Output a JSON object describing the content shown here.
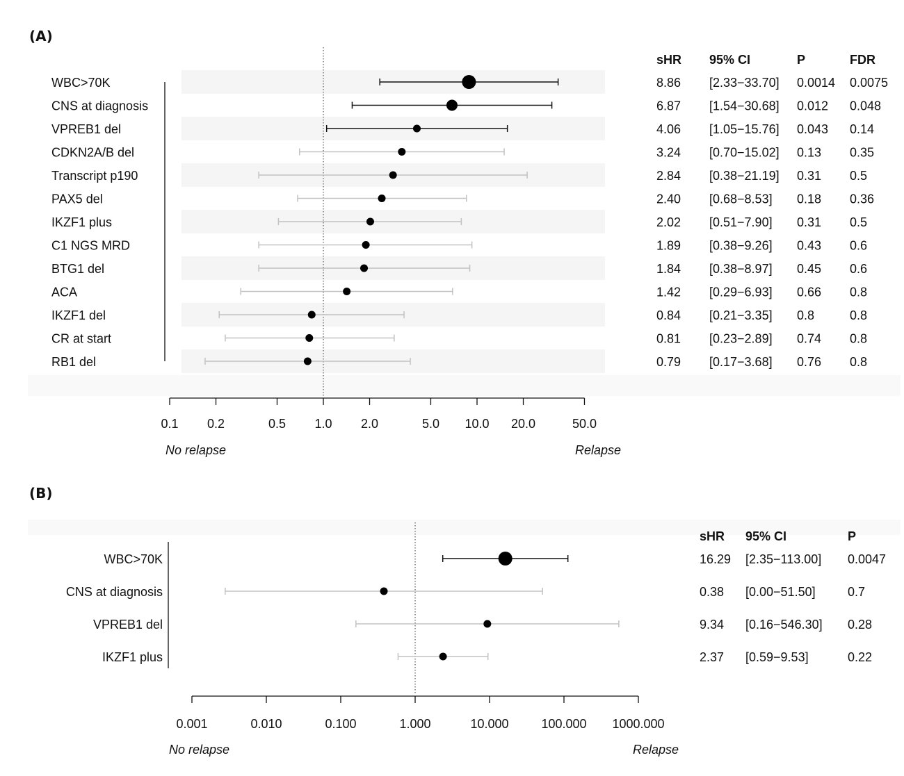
{
  "panels": {
    "a": {
      "label": "(A)"
    },
    "b": {
      "label": "(B)"
    }
  },
  "chart_data": [
    {
      "type": "forest",
      "x_scale": "log",
      "xlim": [
        0.1,
        50
      ],
      "x_ticks": [
        "0.1",
        "0.2",
        "0.5",
        "1.0",
        "2.0",
        "5.0",
        "10.0",
        "20.0",
        "50.0"
      ],
      "x_tick_values": [
        0.1,
        0.2,
        0.5,
        1.0,
        2.0,
        5.0,
        10.0,
        20.0,
        50.0
      ],
      "reference_line": 1.0,
      "left_annotation": "No relapse",
      "right_annotation": "Relapse",
      "columns": [
        "sHR",
        "95% CI",
        "P",
        "FDR"
      ],
      "rows": [
        {
          "label": "WBC>70K",
          "shr": 8.86,
          "lo": 2.33,
          "hi": 33.7,
          "shr_text": "8.86",
          "ci": "[2.33−33.70]",
          "p": "0.0014",
          "fdr": "0.0075",
          "significant": true
        },
        {
          "label": "CNS at diagnosis",
          "shr": 6.87,
          "lo": 1.54,
          "hi": 30.68,
          "shr_text": "6.87",
          "ci": "[1.54−30.68]",
          "p": "0.012",
          "fdr": "0.048",
          "significant": true
        },
        {
          "label": "VPREB1 del",
          "shr": 4.06,
          "lo": 1.05,
          "hi": 15.76,
          "shr_text": "4.06",
          "ci": "[1.05−15.76]",
          "p": "0.043",
          "fdr": "0.14",
          "significant": true
        },
        {
          "label": "CDKN2A/B del",
          "shr": 3.24,
          "lo": 0.7,
          "hi": 15.02,
          "shr_text": "3.24",
          "ci": "[0.70−15.02]",
          "p": "0.13",
          "fdr": "0.35",
          "significant": false
        },
        {
          "label": "Transcript p190",
          "shr": 2.84,
          "lo": 0.38,
          "hi": 21.19,
          "shr_text": "2.84",
          "ci": "[0.38−21.19]",
          "p": "0.31",
          "fdr": "0.5",
          "significant": false
        },
        {
          "label": "PAX5 del",
          "shr": 2.4,
          "lo": 0.68,
          "hi": 8.53,
          "shr_text": "2.40",
          "ci": "[0.68−8.53]",
          "p": "0.18",
          "fdr": "0.36",
          "significant": false
        },
        {
          "label": "IKZF1 plus",
          "shr": 2.02,
          "lo": 0.51,
          "hi": 7.9,
          "shr_text": "2.02",
          "ci": "[0.51−7.90]",
          "p": "0.31",
          "fdr": "0.5",
          "significant": false
        },
        {
          "label": "C1 NGS MRD",
          "shr": 1.89,
          "lo": 0.38,
          "hi": 9.26,
          "shr_text": "1.89",
          "ci": "[0.38−9.26]",
          "p": "0.43",
          "fdr": "0.6",
          "significant": false
        },
        {
          "label": "BTG1 del",
          "shr": 1.84,
          "lo": 0.38,
          "hi": 8.97,
          "shr_text": "1.84",
          "ci": "[0.38−8.97]",
          "p": "0.45",
          "fdr": "0.6",
          "significant": false
        },
        {
          "label": "ACA",
          "shr": 1.42,
          "lo": 0.29,
          "hi": 6.93,
          "shr_text": "1.42",
          "ci": "[0.29−6.93]",
          "p": "0.66",
          "fdr": "0.8",
          "significant": false
        },
        {
          "label": "IKZF1 del",
          "shr": 0.84,
          "lo": 0.21,
          "hi": 3.35,
          "shr_text": "0.84",
          "ci": "[0.21−3.35]",
          "p": "0.8",
          "fdr": "0.8",
          "significant": false
        },
        {
          "label": "CR at start",
          "shr": 0.81,
          "lo": 0.23,
          "hi": 2.89,
          "shr_text": "0.81",
          "ci": "[0.23−2.89]",
          "p": "0.74",
          "fdr": "0.8",
          "significant": false
        },
        {
          "label": "RB1 del",
          "shr": 0.79,
          "lo": 0.17,
          "hi": 3.68,
          "shr_text": "0.79",
          "ci": "[0.17−3.68]",
          "p": "0.76",
          "fdr": "0.8",
          "significant": false
        }
      ]
    },
    {
      "type": "forest",
      "x_scale": "log",
      "xlim": [
        0.001,
        1000
      ],
      "x_ticks": [
        "0.001",
        "0.010",
        "0.100",
        "1.000",
        "10.000",
        "100.000",
        "1000.000"
      ],
      "x_tick_values": [
        0.001,
        0.01,
        0.1,
        1,
        10,
        100,
        1000
      ],
      "reference_line": 1.0,
      "left_annotation": "No relapse",
      "right_annotation": "Relapse",
      "columns": [
        "sHR",
        "95% CI",
        "P"
      ],
      "rows": [
        {
          "label": "WBC>70K",
          "shr": 16.29,
          "lo": 2.35,
          "hi": 113.0,
          "shr_text": "16.29",
          "ci": "[2.35−113.00]",
          "p": "0.0047",
          "significant": true
        },
        {
          "label": "CNS at diagnosis",
          "shr": 0.38,
          "lo": 0.0028,
          "hi": 51.5,
          "shr_text": "0.38",
          "ci": "[0.00−51.50]",
          "p": "0.7",
          "significant": false
        },
        {
          "label": "VPREB1 del",
          "shr": 9.34,
          "lo": 0.16,
          "hi": 546.3,
          "shr_text": "9.34",
          "ci": "[0.16−546.30]",
          "p": "0.28",
          "significant": false
        },
        {
          "label": "IKZF1 plus",
          "shr": 2.37,
          "lo": 0.59,
          "hi": 9.53,
          "shr_text": "2.37",
          "ci": "[0.59−9.53]",
          "p": "0.22",
          "significant": false
        }
      ]
    }
  ]
}
